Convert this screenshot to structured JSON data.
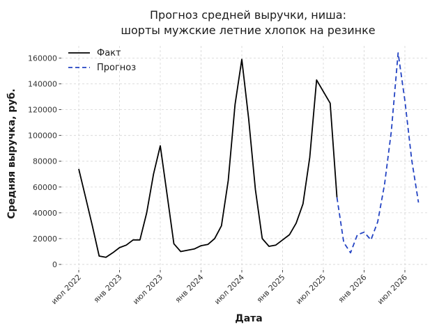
{
  "title": {
    "line1": "Прогноз средней выручки, ниша:",
    "line2": "шорты мужские летние хлопок на резинке"
  },
  "legend": [
    {
      "label": "Факт",
      "color": "#000000",
      "style": "solid"
    },
    {
      "label": "Прогноз",
      "color": "#2343c3",
      "style": "dashed"
    }
  ],
  "colors": {
    "fact": "#000000",
    "forecast": "#2343c3",
    "grid": "#d9d9d9",
    "tick": "#333333",
    "text": "#1a1a1a",
    "background": "#ffffff"
  },
  "chart_data": {
    "type": "line",
    "title": "Прогноз средней выручки, ниша:\nшорты мужские летние хлопок на резинке",
    "xlabel": "Дата",
    "ylabel": "Средняя выручка, руб.",
    "grid": true,
    "legend_position": "upper left",
    "x": [
      "2022-07",
      "2022-08",
      "2022-09",
      "2022-10",
      "2022-11",
      "2022-12",
      "2023-01",
      "2023-02",
      "2023-03",
      "2023-04",
      "2023-05",
      "2023-06",
      "2023-07",
      "2023-08",
      "2023-09",
      "2023-10",
      "2023-11",
      "2023-12",
      "2024-01",
      "2024-02",
      "2024-03",
      "2024-04",
      "2024-05",
      "2024-06",
      "2024-07",
      "2024-08",
      "2024-09",
      "2024-10",
      "2024-11",
      "2024-12",
      "2025-01",
      "2025-02",
      "2025-03",
      "2025-04",
      "2025-05",
      "2025-06",
      "2025-07",
      "2025-08",
      "2025-09",
      "2025-10",
      "2025-11",
      "2025-12",
      "2026-01",
      "2026-02",
      "2026-03",
      "2026-04",
      "2026-05",
      "2026-06",
      "2026-07",
      "2026-08",
      "2026-09"
    ],
    "series": [
      {
        "name": "Факт",
        "color": "#000000",
        "line_style": "solid",
        "start_index": 0,
        "values": [
          74000,
          52000,
          30000,
          6500,
          5500,
          9000,
          13000,
          15000,
          19000,
          19000,
          40000,
          70000,
          92000,
          54000,
          16000,
          10000,
          11000,
          12000,
          14500,
          15500,
          20000,
          30000,
          65000,
          124000,
          159000,
          113000,
          58000,
          20000,
          14000,
          15000,
          19000,
          23000,
          32000,
          47000,
          83000,
          143000,
          134000,
          125000,
          52000
        ]
      },
      {
        "name": "Прогноз",
        "color": "#2343c3",
        "line_style": "dashed",
        "start_index": 38,
        "values": [
          52000,
          17000,
          9000,
          23000,
          25000,
          19000,
          33000,
          62000,
          103000,
          164000,
          127000,
          81000,
          48000
        ]
      }
    ],
    "x_ticks": {
      "indices": [
        0,
        6,
        12,
        18,
        24,
        30,
        36,
        42,
        48
      ],
      "labels": [
        "июл 2022",
        "янв 2023",
        "июл 2023",
        "янв 2024",
        "июл 2024",
        "янв 2025",
        "июл 2025",
        "янв 2026",
        "июл 2026"
      ]
    },
    "y_ticks": [
      0,
      20000,
      40000,
      60000,
      80000,
      100000,
      120000,
      140000,
      160000
    ],
    "ylim": [
      -4300,
      169400
    ],
    "xlim_months": 51
  }
}
